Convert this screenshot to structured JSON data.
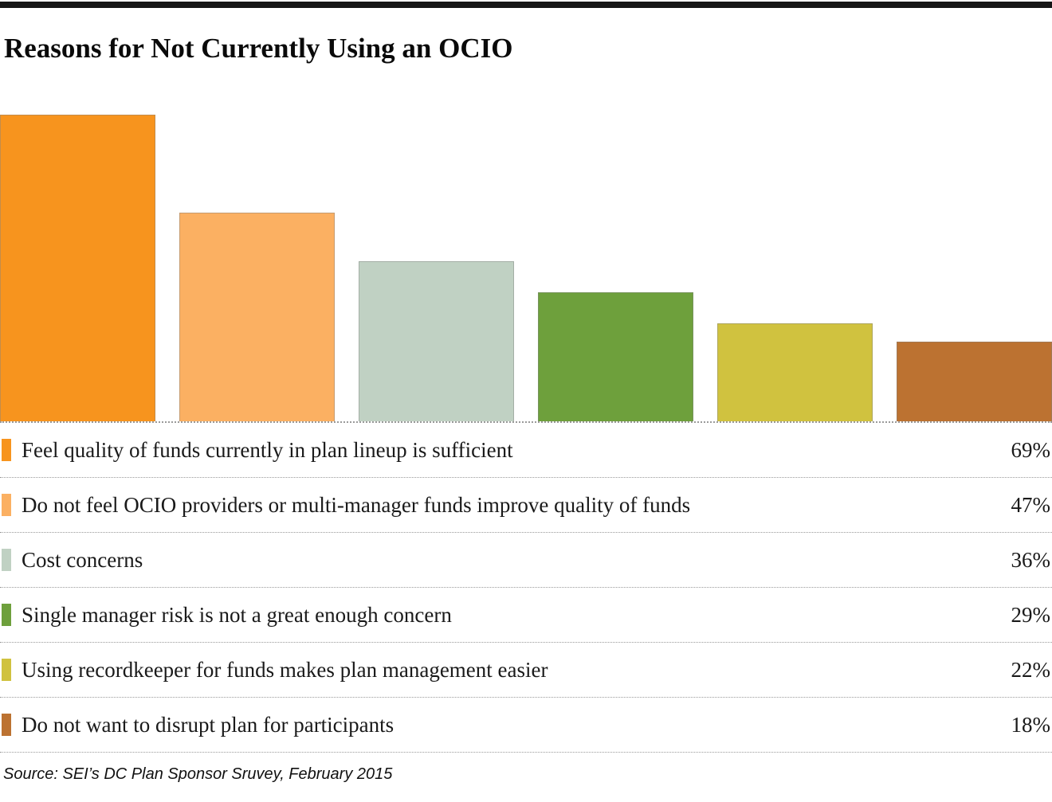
{
  "header": {
    "title": "Reasons for Not Currently Using an OCIO"
  },
  "chart_data": {
    "type": "bar",
    "title": "Reasons for Not Currently Using an OCIO",
    "categories": [
      "Feel quality of funds currently in plan lineup is sufficient",
      "Do not feel OCIO providers or multi-manager funds improve quality of funds",
      "Cost concerns",
      "Single manager risk is not a great enough concern",
      "Using recordkeeper for funds makes plan management easier",
      "Do not want to disrupt plan for participants"
    ],
    "values": [
      69,
      47,
      36,
      29,
      22,
      18
    ],
    "value_suffix": "%",
    "colors": [
      "#F7941E",
      "#FBB062",
      "#C0D1C3",
      "#6EA03C",
      "#D0C23F",
      "#BC7231"
    ],
    "xlabel": "",
    "ylabel": "",
    "ylim": [
      0,
      73
    ],
    "grid": false,
    "legend_position": "table-below-with-values",
    "bar_border_color": "#ABABAB",
    "axis_line_color": "#9A9A9A"
  },
  "footer": {
    "source": "Source: SEI’s DC Plan Sponsor Sruvey, February 2015"
  }
}
